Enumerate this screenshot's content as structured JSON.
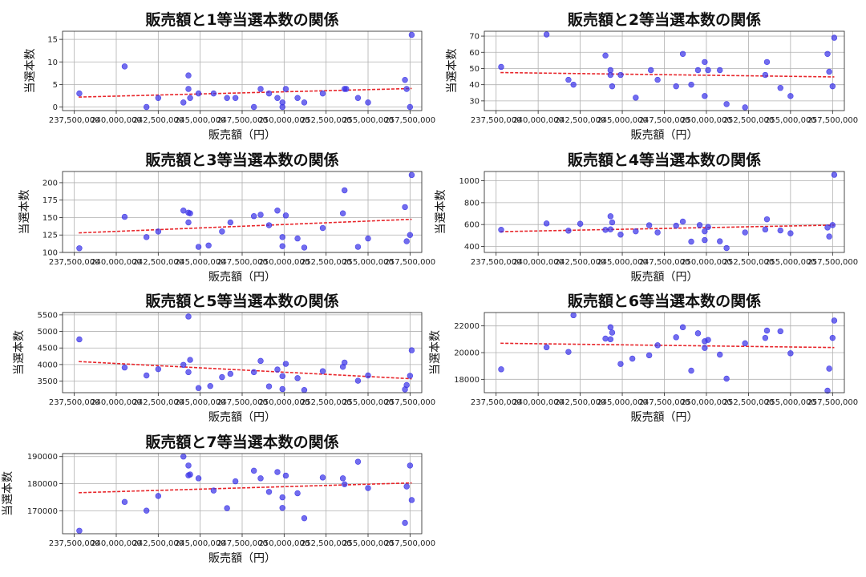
{
  "chart_data": [
    {
      "type": "scatter",
      "title": "販売額と1等当選本数の関係",
      "xlabel": "販売額（円）",
      "ylabel": "当選本数",
      "xlim": [
        236800000,
        258200000
      ],
      "ylim": [
        -0.8,
        16.8
      ],
      "yticks": [
        0,
        5,
        10,
        15
      ],
      "ytick_labels": [
        "0",
        "5",
        "10",
        "15"
      ],
      "trend": [
        2.2,
        4.1
      ],
      "points": [
        [
          237800000,
          3
        ],
        [
          240500000,
          9
        ],
        [
          241800000,
          0
        ],
        [
          242500000,
          2
        ],
        [
          244000000,
          1
        ],
        [
          244300000,
          7
        ],
        [
          244400000,
          2
        ],
        [
          244300000,
          4
        ],
        [
          244900000,
          3
        ],
        [
          245800000,
          3
        ],
        [
          246600000,
          2
        ],
        [
          247100000,
          2
        ],
        [
          248200000,
          0
        ],
        [
          248600000,
          4
        ],
        [
          249100000,
          3
        ],
        [
          249600000,
          2
        ],
        [
          249900000,
          1
        ],
        [
          249900000,
          0
        ],
        [
          250100000,
          4
        ],
        [
          250800000,
          2
        ],
        [
          251200000,
          1
        ],
        [
          252300000,
          3
        ],
        [
          253600000,
          4
        ],
        [
          253700000,
          4
        ],
        [
          254400000,
          2
        ],
        [
          255000000,
          1
        ],
        [
          257200000,
          6
        ],
        [
          257300000,
          4
        ],
        [
          257500000,
          0
        ],
        [
          257600000,
          16
        ]
      ]
    },
    {
      "type": "scatter",
      "title": "販売額と2等当選本数の関係",
      "xlabel": "販売額（円）",
      "ylabel": "当選本数",
      "xlim": [
        236800000,
        258200000
      ],
      "ylim": [
        24,
        73
      ],
      "yticks": [
        30,
        40,
        50,
        60,
        70
      ],
      "ytick_labels": [
        "30",
        "40",
        "50",
        "60",
        "70"
      ],
      "trend": [
        47.5,
        44.8
      ],
      "points": [
        [
          237800000,
          51
        ],
        [
          240500000,
          71
        ],
        [
          241800000,
          43
        ],
        [
          242100000,
          40
        ],
        [
          244000000,
          58
        ],
        [
          244300000,
          49
        ],
        [
          244400000,
          39
        ],
        [
          244300000,
          46
        ],
        [
          244900000,
          46
        ],
        [
          245800000,
          32
        ],
        [
          246700000,
          49
        ],
        [
          247100000,
          43
        ],
        [
          248200000,
          39
        ],
        [
          248600000,
          59
        ],
        [
          249100000,
          40
        ],
        [
          249500000,
          49
        ],
        [
          249900000,
          54
        ],
        [
          249900000,
          33
        ],
        [
          250100000,
          49
        ],
        [
          250800000,
          49
        ],
        [
          251200000,
          28
        ],
        [
          252300000,
          26
        ],
        [
          253600000,
          54
        ],
        [
          253500000,
          46
        ],
        [
          254400000,
          38
        ],
        [
          255000000,
          33
        ],
        [
          257200000,
          59
        ],
        [
          257300000,
          48
        ],
        [
          257500000,
          39
        ],
        [
          257600000,
          69
        ]
      ]
    },
    {
      "type": "scatter",
      "title": "販売額と3等当選本数の関係",
      "xlabel": "販売額（円）",
      "ylabel": "当選本数",
      "xlim": [
        236800000,
        258200000
      ],
      "ylim": [
        100,
        216
      ],
      "yticks": [
        100,
        125,
        150,
        175,
        200
      ],
      "ytick_labels": [
        "100",
        "125",
        "150",
        "175",
        "200"
      ],
      "trend": [
        128,
        147.5
      ],
      "points": [
        [
          237800000,
          106
        ],
        [
          240500000,
          151
        ],
        [
          241800000,
          122
        ],
        [
          242500000,
          130
        ],
        [
          244000000,
          160
        ],
        [
          244300000,
          157
        ],
        [
          244400000,
          156
        ],
        [
          244300000,
          143
        ],
        [
          244900000,
          108
        ],
        [
          245500000,
          110
        ],
        [
          246300000,
          130
        ],
        [
          246800000,
          143
        ],
        [
          248200000,
          152
        ],
        [
          248600000,
          154
        ],
        [
          249100000,
          139
        ],
        [
          249600000,
          160
        ],
        [
          249900000,
          122
        ],
        [
          249900000,
          109
        ],
        [
          250100000,
          153
        ],
        [
          250800000,
          120
        ],
        [
          251200000,
          107
        ],
        [
          252300000,
          135
        ],
        [
          253600000,
          189
        ],
        [
          253500000,
          156
        ],
        [
          254400000,
          108
        ],
        [
          255000000,
          120
        ],
        [
          257200000,
          165
        ],
        [
          257300000,
          116
        ],
        [
          257500000,
          125
        ],
        [
          257600000,
          211
        ]
      ]
    },
    {
      "type": "scatter",
      "title": "販売額と4等当選本数の関係",
      "xlabel": "販売額（円）",
      "ylabel": "当選本数",
      "xlim": [
        236800000,
        258200000
      ],
      "ylim": [
        345,
        1085
      ],
      "yticks": [
        400,
        600,
        800,
        1000
      ],
      "ytick_labels": [
        "400",
        "600",
        "800",
        "1000"
      ],
      "trend": [
        535,
        595
      ],
      "points": [
        [
          237800000,
          552
        ],
        [
          240500000,
          610
        ],
        [
          241800000,
          544
        ],
        [
          242500000,
          607
        ],
        [
          244000000,
          551
        ],
        [
          244300000,
          676
        ],
        [
          244400000,
          620
        ],
        [
          244300000,
          556
        ],
        [
          244900000,
          508
        ],
        [
          245800000,
          538
        ],
        [
          246600000,
          594
        ],
        [
          247100000,
          528
        ],
        [
          248200000,
          590
        ],
        [
          248600000,
          627
        ],
        [
          249100000,
          444
        ],
        [
          249600000,
          595
        ],
        [
          249900000,
          538
        ],
        [
          249900000,
          458
        ],
        [
          250100000,
          578
        ],
        [
          250800000,
          447
        ],
        [
          251200000,
          385
        ],
        [
          252300000,
          528
        ],
        [
          253600000,
          648
        ],
        [
          253500000,
          555
        ],
        [
          254400000,
          546
        ],
        [
          255000000,
          520
        ],
        [
          257200000,
          573
        ],
        [
          257300000,
          491
        ],
        [
          257500000,
          595
        ],
        [
          257600000,
          1055
        ]
      ]
    },
    {
      "type": "scatter",
      "title": "販売額と5等当選本数の関係",
      "xlabel": "販売額（円）",
      "ylabel": "当選本数",
      "xlim": [
        236800000,
        258200000
      ],
      "ylim": [
        3150,
        5570
      ],
      "yticks": [
        3500,
        4000,
        4500,
        5000,
        5500
      ],
      "ytick_labels": [
        "3500",
        "4000",
        "4500",
        "5000",
        "5500"
      ],
      "trend": [
        4090,
        3570
      ],
      "points": [
        [
          237800000,
          4760
        ],
        [
          240500000,
          3910
        ],
        [
          241800000,
          3670
        ],
        [
          242500000,
          3860
        ],
        [
          244000000,
          3990
        ],
        [
          244300000,
          5450
        ],
        [
          244400000,
          4140
        ],
        [
          244300000,
          3770
        ],
        [
          244900000,
          3290
        ],
        [
          245600000,
          3350
        ],
        [
          246300000,
          3620
        ],
        [
          246800000,
          3720
        ],
        [
          248200000,
          3770
        ],
        [
          248600000,
          4110
        ],
        [
          249100000,
          3340
        ],
        [
          249600000,
          3850
        ],
        [
          249900000,
          3650
        ],
        [
          249900000,
          3260
        ],
        [
          250100000,
          4020
        ],
        [
          250800000,
          3590
        ],
        [
          251200000,
          3230
        ],
        [
          252300000,
          3800
        ],
        [
          253600000,
          4060
        ],
        [
          253500000,
          3930
        ],
        [
          254400000,
          3510
        ],
        [
          255000000,
          3670
        ],
        [
          257200000,
          3250
        ],
        [
          257300000,
          3380
        ],
        [
          257500000,
          3660
        ],
        [
          257600000,
          4430
        ]
      ]
    },
    {
      "type": "scatter",
      "title": "販売額と6等当選本数の関係",
      "xlabel": "販売額（円）",
      "ylabel": "当選本数",
      "xlim": [
        236800000,
        258200000
      ],
      "ylim": [
        17000,
        23000
      ],
      "yticks": [
        18000,
        20000,
        22000
      ],
      "ytick_labels": [
        "18000",
        "20000",
        "22000"
      ],
      "trend": [
        20700,
        20380
      ],
      "points": [
        [
          237800000,
          18750
        ],
        [
          240500000,
          20400
        ],
        [
          241800000,
          20050
        ],
        [
          242100000,
          22800
        ],
        [
          244000000,
          21050
        ],
        [
          244300000,
          21900
        ],
        [
          244400000,
          21500
        ],
        [
          244300000,
          21000
        ],
        [
          244900000,
          19150
        ],
        [
          245600000,
          19550
        ],
        [
          246600000,
          19800
        ],
        [
          247100000,
          20550
        ],
        [
          248200000,
          21150
        ],
        [
          248600000,
          21900
        ],
        [
          249100000,
          18650
        ],
        [
          249500000,
          21450
        ],
        [
          249900000,
          20850
        ],
        [
          249900000,
          20350
        ],
        [
          250100000,
          20950
        ],
        [
          250800000,
          19850
        ],
        [
          251200000,
          18050
        ],
        [
          252300000,
          20700
        ],
        [
          253600000,
          21650
        ],
        [
          253500000,
          21100
        ],
        [
          254400000,
          21600
        ],
        [
          255000000,
          19950
        ],
        [
          257200000,
          17150
        ],
        [
          257300000,
          18800
        ],
        [
          257500000,
          21100
        ],
        [
          257600000,
          22400
        ]
      ]
    },
    {
      "type": "scatter",
      "title": "販売額と7等当選本数の関係",
      "xlabel": "販売額（円）",
      "ylabel": "当選本数",
      "xlim": [
        236800000,
        258200000
      ],
      "ylim": [
        161600,
        191100
      ],
      "yticks": [
        170000,
        180000,
        190000
      ],
      "ytick_labels": [
        "170000",
        "180000",
        "190000"
      ],
      "trend": [
        176700,
        180300
      ],
      "points": [
        [
          237800000,
          162700
        ],
        [
          240500000,
          173300
        ],
        [
          241800000,
          170100
        ],
        [
          242500000,
          175500
        ],
        [
          244000000,
          190000
        ],
        [
          244300000,
          186700
        ],
        [
          244400000,
          183400
        ],
        [
          244300000,
          183100
        ],
        [
          244900000,
          182000
        ],
        [
          245800000,
          177500
        ],
        [
          246600000,
          171000
        ],
        [
          247100000,
          180900
        ],
        [
          248200000,
          184800
        ],
        [
          248600000,
          182000
        ],
        [
          249100000,
          177000
        ],
        [
          249600000,
          184300
        ],
        [
          249900000,
          171100
        ],
        [
          249900000,
          175000
        ],
        [
          250100000,
          183000
        ],
        [
          250800000,
          176500
        ],
        [
          251200000,
          167300
        ],
        [
          252300000,
          182300
        ],
        [
          253600000,
          179800
        ],
        [
          253500000,
          182000
        ],
        [
          254400000,
          188100
        ],
        [
          255000000,
          178400
        ],
        [
          257200000,
          165600
        ],
        [
          257300000,
          179000
        ],
        [
          257500000,
          186700
        ],
        [
          257600000,
          174000
        ]
      ]
    }
  ],
  "x_ticks": [
    237500000,
    240000000,
    242500000,
    245000000,
    247500000,
    250000000,
    252500000,
    255000000,
    257500000
  ],
  "x_tick_labels": [
    "237,500,000",
    "240,000,000",
    "242,500,000",
    "245,000,000",
    "247,500,000",
    "250,000,000",
    "252,500,000",
    "255,000,000",
    "257,500,000"
  ],
  "colors": {
    "points": "#3b34e8",
    "trend": "#e8262b",
    "grid": "#b0b0b0"
  }
}
